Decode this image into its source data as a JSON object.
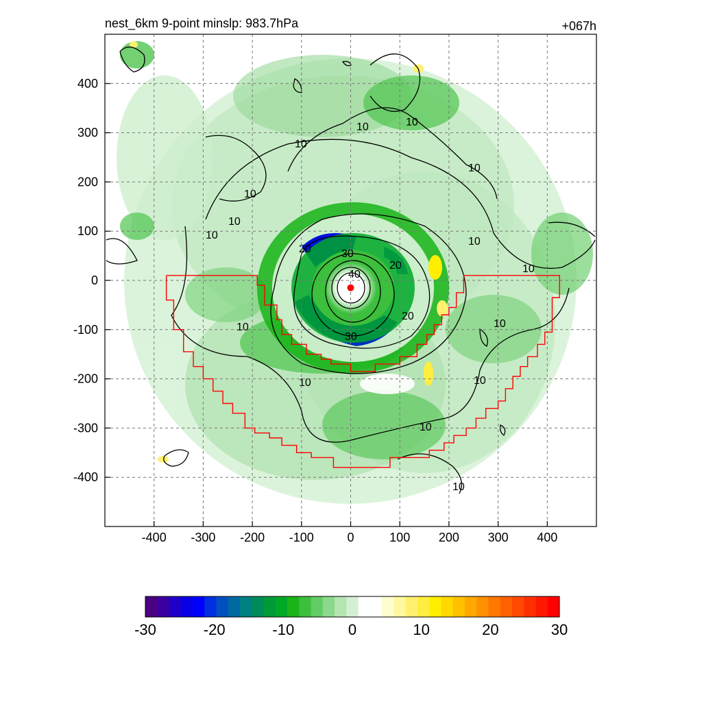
{
  "chart_data": {
    "type": "heatmap",
    "title_left": "nest_6km  9-point minslp: 983.7hPa",
    "title_right": "+067h",
    "xlim": [
      -500,
      500
    ],
    "ylim": [
      -500,
      500
    ],
    "x_ticks": [
      -400,
      -300,
      -200,
      -100,
      0,
      100,
      200,
      300,
      400
    ],
    "y_ticks": [
      400,
      300,
      200,
      100,
      0,
      -100,
      -200,
      -300,
      -400
    ],
    "grid": true,
    "colorbar": {
      "min": -30,
      "max": 30,
      "ticks": [
        -30,
        -20,
        -10,
        0,
        10,
        20,
        30
      ],
      "colors": [
        "#4b0082",
        "#3a00a0",
        "#2000c8",
        "#0a00e6",
        "#0000ff",
        "#0030e0",
        "#0050c0",
        "#006aa0",
        "#008080",
        "#008c5a",
        "#009a38",
        "#00a828",
        "#18b418",
        "#3cbf3c",
        "#64cc64",
        "#8cd88c",
        "#b4e6b4",
        "#d4f0d4",
        "#ffffff",
        "#ffffff",
        "#fffcd0",
        "#fff8a0",
        "#fff070",
        "#ffee40",
        "#ffee00",
        "#ffd800",
        "#ffc000",
        "#ffa800",
        "#ff9000",
        "#ff7800",
        "#ff6000",
        "#ff4800",
        "#ff3000",
        "#ff1800",
        "#ff0000"
      ]
    },
    "contours": {
      "levels_labeled": [
        10,
        20,
        30,
        40
      ],
      "color": "#000000"
    },
    "boundary_color": "#ff0000",
    "boundary_polygon": [
      [
        -375,
        10
      ],
      [
        -190,
        10
      ],
      [
        -190,
        -10
      ],
      [
        -175,
        -10
      ],
      [
        -175,
        -50
      ],
      [
        -150,
        -50
      ],
      [
        -150,
        -80
      ],
      [
        -140,
        -80
      ],
      [
        -140,
        -110
      ],
      [
        -120,
        -110
      ],
      [
        -120,
        -130
      ],
      [
        -90,
        -130
      ],
      [
        -90,
        -150
      ],
      [
        -60,
        -150
      ],
      [
        -60,
        -160
      ],
      [
        -40,
        -160
      ],
      [
        -40,
        -170
      ],
      [
        0,
        -170
      ],
      [
        0,
        -185
      ],
      [
        50,
        -185
      ],
      [
        50,
        -170
      ],
      [
        100,
        -170
      ],
      [
        100,
        -155
      ],
      [
        135,
        -155
      ],
      [
        135,
        -130
      ],
      [
        155,
        -130
      ],
      [
        155,
        -110
      ],
      [
        170,
        -110
      ],
      [
        170,
        -90
      ],
      [
        185,
        -90
      ],
      [
        185,
        -70
      ],
      [
        200,
        -70
      ],
      [
        200,
        -55
      ],
      [
        215,
        -55
      ],
      [
        215,
        -25
      ],
      [
        230,
        -25
      ],
      [
        230,
        10
      ],
      [
        425,
        10
      ],
      [
        425,
        -35
      ],
      [
        410,
        -35
      ],
      [
        410,
        -105
      ],
      [
        395,
        -105
      ],
      [
        395,
        -130
      ],
      [
        380,
        -130
      ],
      [
        380,
        -155
      ],
      [
        360,
        -155
      ],
      [
        360,
        -175
      ],
      [
        345,
        -175
      ],
      [
        345,
        -195
      ],
      [
        330,
        -195
      ],
      [
        330,
        -220
      ],
      [
        315,
        -220
      ],
      [
        315,
        -245
      ],
      [
        300,
        -245
      ],
      [
        300,
        -260
      ],
      [
        275,
        -260
      ],
      [
        275,
        -280
      ],
      [
        255,
        -280
      ],
      [
        255,
        -300
      ],
      [
        235,
        -300
      ],
      [
        235,
        -315
      ],
      [
        210,
        -315
      ],
      [
        210,
        -330
      ],
      [
        190,
        -330
      ],
      [
        190,
        -345
      ],
      [
        160,
        -345
      ],
      [
        160,
        -360
      ],
      [
        80,
        -360
      ],
      [
        80,
        -380
      ],
      [
        -35,
        -380
      ],
      [
        -35,
        -360
      ],
      [
        -80,
        -360
      ],
      [
        -80,
        -350
      ],
      [
        -110,
        -350
      ],
      [
        -110,
        -335
      ],
      [
        -140,
        -335
      ],
      [
        -140,
        -320
      ],
      [
        -165,
        -320
      ],
      [
        -165,
        -310
      ],
      [
        -195,
        -310
      ],
      [
        -195,
        -300
      ],
      [
        -215,
        -300
      ],
      [
        -215,
        -270
      ],
      [
        -240,
        -270
      ],
      [
        -240,
        -250
      ],
      [
        -260,
        -250
      ],
      [
        -260,
        -225
      ],
      [
        -280,
        -225
      ],
      [
        -280,
        -200
      ],
      [
        -300,
        -200
      ],
      [
        -300,
        -175
      ],
      [
        -320,
        -175
      ],
      [
        -320,
        -145
      ],
      [
        -340,
        -145
      ],
      [
        -340,
        -100
      ],
      [
        -360,
        -100
      ],
      [
        -360,
        -40
      ],
      [
        -375,
        -40
      ],
      [
        -375,
        10
      ]
    ],
    "center_marker": [
      0,
      -15
    ]
  }
}
